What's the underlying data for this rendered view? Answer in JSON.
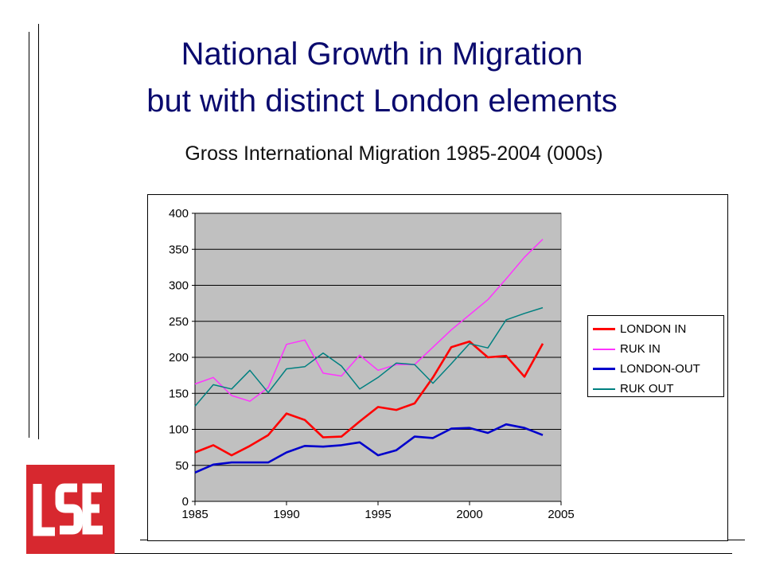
{
  "slide": {
    "title_line1": "National Growth in Migration",
    "title_line2": "but with distinct London elements",
    "subtitle": "Gross International Migration 1985-2004 (000s)"
  },
  "logo": {
    "text": "LSE",
    "color": "#d7282f"
  },
  "chart_data": {
    "type": "line",
    "x": [
      1985,
      1986,
      1987,
      1988,
      1989,
      1990,
      1991,
      1992,
      1993,
      1994,
      1995,
      1996,
      1997,
      1998,
      1999,
      2000,
      2001,
      2002,
      2003,
      2004
    ],
    "xlim": [
      1985,
      2005
    ],
    "ylim": [
      0,
      400
    ],
    "xticks": [
      1985,
      1990,
      1995,
      2000,
      2005
    ],
    "yticks": [
      0,
      50,
      100,
      150,
      200,
      250,
      300,
      350,
      400
    ],
    "grid": "horizontal",
    "plot_background": "#c0c0c0",
    "legend_position": "right",
    "series": [
      {
        "name": "LONDON IN",
        "color": "#ff0000",
        "width": 2.6,
        "values": [
          68,
          78,
          64,
          77,
          92,
          122,
          113,
          89,
          90,
          111,
          131,
          127,
          136,
          172,
          214,
          222,
          200,
          202,
          173,
          219
        ]
      },
      {
        "name": "RUK IN",
        "color": "#ff33ff",
        "width": 1.5,
        "values": [
          163,
          172,
          147,
          139,
          158,
          218,
          224,
          178,
          174,
          203,
          182,
          190,
          190,
          214,
          238,
          259,
          280,
          309,
          339,
          364
        ]
      },
      {
        "name": "LONDON-OUT",
        "color": "#0000cc",
        "width": 2.6,
        "values": [
          40,
          51,
          54,
          54,
          54,
          68,
          77,
          76,
          78,
          82,
          64,
          71,
          90,
          88,
          101,
          102,
          95,
          107,
          102,
          92
        ]
      },
      {
        "name": "RUK OUT",
        "color": "#008080",
        "width": 1.5,
        "values": [
          132,
          162,
          156,
          182,
          151,
          184,
          187,
          206,
          188,
          156,
          172,
          192,
          190,
          164,
          191,
          219,
          213,
          252,
          261,
          269
        ]
      }
    ]
  }
}
